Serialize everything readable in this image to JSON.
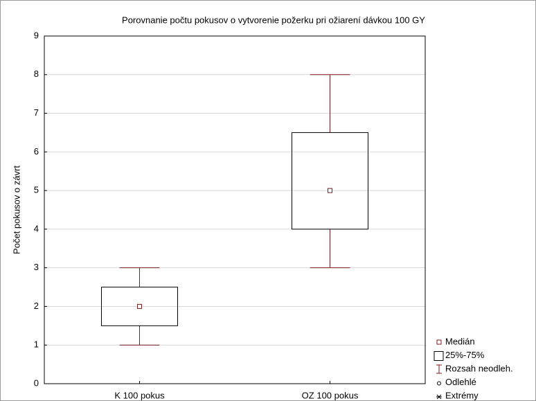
{
  "chart_data": {
    "type": "box",
    "title": "Porovnanie počtu pokusov o vytvorenie požerku pri ožiarení dávkou 100 GY",
    "ylabel": "Počet pokusov o závrt",
    "categories": [
      "K 100 pokus",
      "OZ 100 pokus"
    ],
    "median": [
      2,
      5
    ],
    "q1": [
      1.5,
      4
    ],
    "q3": [
      2.5,
      6.5
    ],
    "whisker_low": [
      1,
      3
    ],
    "whisker_high": [
      3,
      8
    ],
    "ylim": [
      0,
      9
    ],
    "yticks": [
      0,
      1,
      2,
      3,
      4,
      5,
      6,
      7,
      8,
      9
    ],
    "grid": true,
    "box_color": "#000000",
    "whisker_color": "#7b1a1a",
    "legend": [
      "Medián",
      "25%-75%",
      "Rozsah neodleh.",
      "Odlehlé",
      "Extrémy"
    ]
  }
}
